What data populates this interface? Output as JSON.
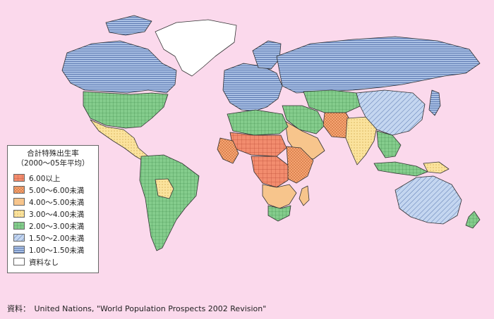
{
  "legend": {
    "title_line1": "合計特殊出生率",
    "title_line2": "（2000～05年平均）",
    "items": [
      {
        "label": "6.00以上",
        "color": "#f28c6e",
        "pattern": "grid-red"
      },
      {
        "label": "5.00～6.00未満",
        "color": "#f5a673",
        "pattern": "dots-orange"
      },
      {
        "label": "4.00～5.00未満",
        "color": "#f7c58c",
        "pattern": "solid-peach"
      },
      {
        "label": "3.00～4.00未満",
        "color": "#fbe39d",
        "pattern": "dots-yellow"
      },
      {
        "label": "2.00～3.00未満",
        "color": "#84cc8c",
        "pattern": "grid-green"
      },
      {
        "label": "1.50～2.00未満",
        "color": "#a8c4e8",
        "pattern": "diag-blue"
      },
      {
        "label": "1.00～1.50未満",
        "color": "#86a8d6",
        "pattern": "horiz-blue"
      },
      {
        "label": "資料なし",
        "color": "#ffffff",
        "pattern": "none"
      }
    ]
  },
  "source": "資料：　United Nations, \"World Population Prospects 2002 Revision\"",
  "colors": {
    "background": "#fbd9ec",
    "ocean": "#fbd9ec",
    "border": "#333333"
  },
  "regions": [
    {
      "name": "north-america-greenland",
      "category": 7
    },
    {
      "name": "north-america-canada",
      "category": 6
    },
    {
      "name": "north-america-usa",
      "category": 4
    },
    {
      "name": "central-america",
      "category": 3
    },
    {
      "name": "south-america",
      "category": 4
    },
    {
      "name": "south-america-bolivia",
      "category": 3
    },
    {
      "name": "europe",
      "category": 6
    },
    {
      "name": "russia",
      "category": 6
    },
    {
      "name": "north-africa",
      "category": 4
    },
    {
      "name": "sahel",
      "category": 0
    },
    {
      "name": "west-africa",
      "category": 1
    },
    {
      "name": "central-africa",
      "category": 0
    },
    {
      "name": "east-africa",
      "category": 1
    },
    {
      "name": "southern-africa",
      "category": 2
    },
    {
      "name": "south-africa",
      "category": 4
    },
    {
      "name": "middle-east",
      "category": 2
    },
    {
      "name": "iran-turkey",
      "category": 4
    },
    {
      "name": "afghanistan-pakistan",
      "category": 1
    },
    {
      "name": "india",
      "category": 3
    },
    {
      "name": "china",
      "category": 5
    },
    {
      "name": "central-asia",
      "category": 4
    },
    {
      "name": "japan-korea",
      "category": 6
    },
    {
      "name": "southeast-asia",
      "category": 4
    },
    {
      "name": "indonesia",
      "category": 4
    },
    {
      "name": "papua",
      "category": 3
    },
    {
      "name": "australia",
      "category": 5
    },
    {
      "name": "new-zealand",
      "category": 4
    }
  ]
}
